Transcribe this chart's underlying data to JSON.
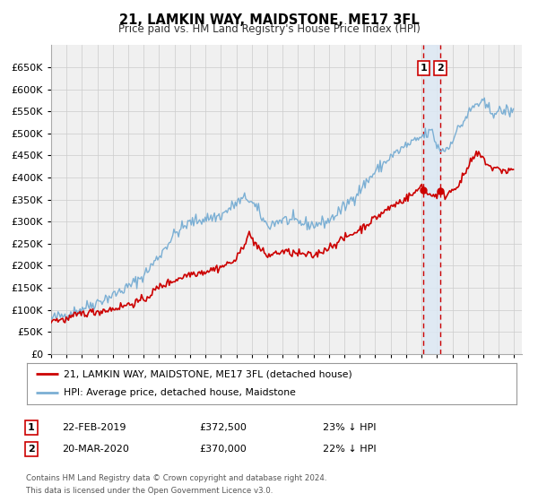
{
  "title": "21, LAMKIN WAY, MAIDSTONE, ME17 3FL",
  "subtitle": "Price paid vs. HM Land Registry's House Price Index (HPI)",
  "legend_label_red": "21, LAMKIN WAY, MAIDSTONE, ME17 3FL (detached house)",
  "legend_label_blue": "HPI: Average price, detached house, Maidstone",
  "marker1_date": "22-FEB-2019",
  "marker1_price": 372500,
  "marker1_pct": "23% ↓ HPI",
  "marker2_date": "20-MAR-2020",
  "marker2_price": 370000,
  "marker2_pct": "22% ↓ HPI",
  "footer1": "Contains HM Land Registry data © Crown copyright and database right 2024.",
  "footer2": "This data is licensed under the Open Government Licence v3.0.",
  "red_color": "#cc0000",
  "blue_color": "#7bafd4",
  "marker_dot_color": "#cc0000",
  "vline_color": "#cc0000",
  "vshade_color": "#dde8f4",
  "grid_color": "#cccccc",
  "background_color": "#f0f0f0",
  "plot_bg": "#f0f0f0",
  "ylim_min": 0,
  "ylim_max": 700000,
  "xlim_min": 1995.0,
  "xlim_max": 2025.5,
  "marker1_x": 2019.13,
  "marker2_x": 2020.22,
  "yticks": [
    0,
    50000,
    100000,
    150000,
    200000,
    250000,
    300000,
    350000,
    400000,
    450000,
    500000,
    550000,
    600000,
    650000
  ]
}
